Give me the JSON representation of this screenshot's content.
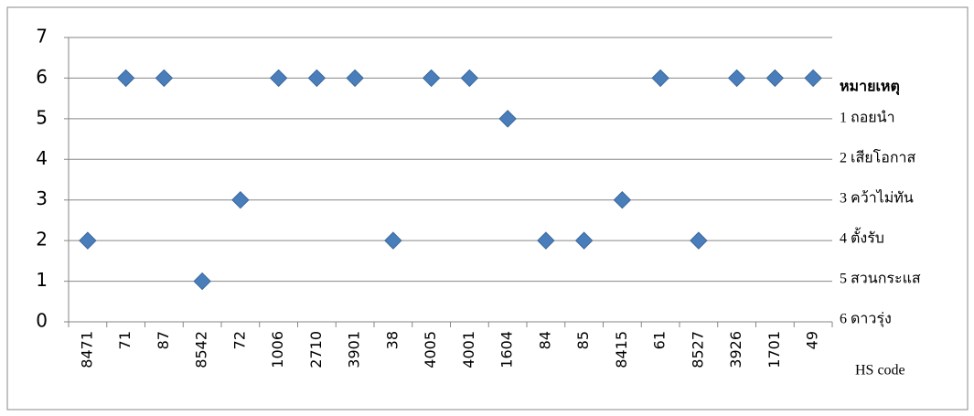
{
  "chart_data": {
    "type": "scatter",
    "categories": [
      "8471",
      "71",
      "87",
      "8542",
      "72",
      "1006",
      "2710",
      "3901",
      "38",
      "4005",
      "4001",
      "1604",
      "84",
      "85",
      "8415",
      "61",
      "8527",
      "3926",
      "1701",
      "49"
    ],
    "values": [
      2,
      6,
      6,
      1,
      3,
      6,
      6,
      6,
      2,
      6,
      6,
      5,
      2,
      2,
      3,
      6,
      2,
      6,
      6,
      6
    ],
    "color": "#4a7ebb",
    "ylim": [
      0,
      7
    ],
    "yticks": [
      0,
      1,
      2,
      3,
      4,
      5,
      6,
      7
    ],
    "grid": true,
    "x_label": "HS code",
    "notes_title": "หมายเหตุ",
    "notes": [
      "1 ถอยนำ",
      "2 เสียโอกาส",
      "3 คว้าไม่ทัน",
      "4 ตั้งรับ",
      "5 สวนกระแส",
      "6 ดาวรุ่ง"
    ]
  }
}
